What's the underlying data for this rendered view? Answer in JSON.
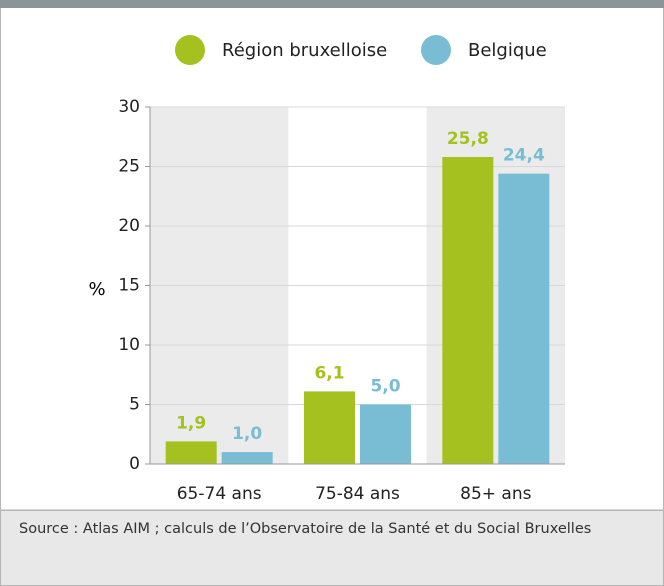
{
  "chart_data": {
    "type": "bar",
    "categories": [
      "65-74 ans",
      "75-84 ans",
      "85+ ans"
    ],
    "series": [
      {
        "name": "Région bruxelloise",
        "color": "#a4c11f",
        "values": [
          1.9,
          6.1,
          25.8
        ],
        "value_labels": [
          "1,9",
          "6,1",
          "25,8"
        ]
      },
      {
        "name": "Belgique",
        "color": "#78bdd3",
        "values": [
          1.0,
          5.0,
          24.4
        ],
        "value_labels": [
          "1,0",
          "5,0",
          "24,4"
        ]
      }
    ],
    "ylabel": "%",
    "ylim": [
      0,
      30
    ],
    "yticks": [
      0,
      5,
      10,
      15,
      20,
      25,
      30
    ],
    "grid": true,
    "source": "Source : Atlas AIM ; calculs de l’Observatoire de la Santé et du Social Bruxelles"
  }
}
